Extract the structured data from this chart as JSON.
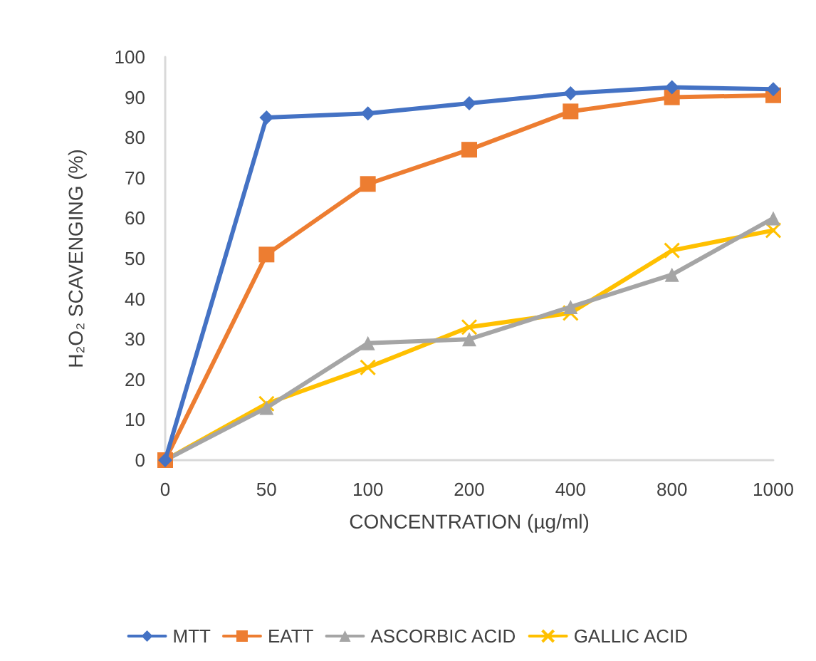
{
  "chart_data": {
    "type": "line",
    "xlabel": "CONCENTRATION (µg/ml)",
    "ylabel": "H₂O₂ SCAVENGING (%)",
    "categories": [
      "0",
      "50",
      "100",
      "200",
      "400",
      "800",
      "1000"
    ],
    "series": [
      {
        "name": "MTT",
        "color": "#4472c4",
        "marker": "diamond",
        "values": [
          0,
          85,
          86,
          88.5,
          91,
          92.5,
          92
        ]
      },
      {
        "name": "EATT",
        "color": "#ed7d31",
        "marker": "square",
        "values": [
          0,
          51,
          68.5,
          77,
          86.5,
          90,
          90.5
        ]
      },
      {
        "name": "ASCORBIC ACID",
        "color": "#a5a5a5",
        "marker": "triangle",
        "values": [
          0,
          13,
          29,
          30,
          38,
          46,
          60
        ]
      },
      {
        "name": "GALLIC ACID",
        "color": "#ffc000",
        "marker": "cross",
        "values": [
          0,
          14,
          23,
          33,
          36.5,
          52,
          57
        ]
      }
    ],
    "ylim": [
      0,
      100
    ],
    "yticks": [
      0,
      10,
      20,
      30,
      40,
      50,
      60,
      70,
      80,
      90,
      100
    ],
    "grid": false,
    "legend": "bottom"
  }
}
